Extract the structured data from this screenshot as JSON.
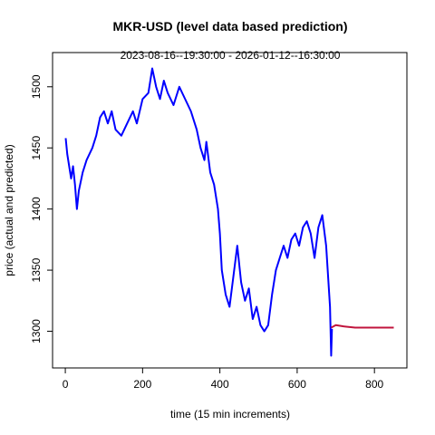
{
  "chart_data": {
    "type": "line",
    "title": "MKR-USD (level data based prediction)",
    "subtitle": "2023-08-16--19:30:00  -  2026-01-12--16:30:00",
    "xlabel": "time (15 min increments)",
    "ylabel": "price (actual and predicted)",
    "xlim": [
      -33,
      884
    ],
    "ylim": [
      1270,
      1528
    ],
    "xticks": [
      0,
      200,
      400,
      600,
      800
    ],
    "yticks": [
      1300,
      1350,
      1400,
      1450,
      1500
    ],
    "series": [
      {
        "name": "actual",
        "color": "#0000ff",
        "x": [
          1,
          5,
          15,
          20,
          25,
          30,
          35,
          45,
          55,
          70,
          80,
          90,
          100,
          110,
          120,
          130,
          145,
          160,
          175,
          185,
          200,
          215,
          225,
          235,
          245,
          255,
          265,
          280,
          295,
          310,
          325,
          340,
          350,
          360,
          365,
          375,
          385,
          395,
          400,
          405,
          415,
          425,
          435,
          445,
          455,
          465,
          475,
          485,
          495,
          505,
          515,
          525,
          535,
          545,
          555,
          565,
          575,
          585,
          595,
          605,
          615,
          625,
          635,
          645,
          655,
          665,
          675,
          680,
          685,
          688,
          690
        ],
        "values": [
          1458,
          1445,
          1425,
          1435,
          1420,
          1400,
          1415,
          1430,
          1440,
          1450,
          1460,
          1475,
          1480,
          1470,
          1480,
          1465,
          1460,
          1470,
          1480,
          1470,
          1490,
          1495,
          1515,
          1500,
          1490,
          1505,
          1495,
          1485,
          1500,
          1490,
          1480,
          1465,
          1450,
          1440,
          1455,
          1430,
          1420,
          1400,
          1380,
          1350,
          1330,
          1320,
          1345,
          1370,
          1340,
          1325,
          1335,
          1310,
          1320,
          1305,
          1300,
          1305,
          1330,
          1350,
          1360,
          1370,
          1360,
          1375,
          1380,
          1370,
          1385,
          1390,
          1380,
          1360,
          1385,
          1395,
          1370,
          1345,
          1320,
          1280,
          1302
        ]
      },
      {
        "name": "predicted",
        "color": "#c0143c",
        "x": [
          688,
          700,
          720,
          750,
          800,
          850
        ],
        "values": [
          1303,
          1305,
          1304,
          1303,
          1303,
          1303
        ]
      }
    ]
  }
}
